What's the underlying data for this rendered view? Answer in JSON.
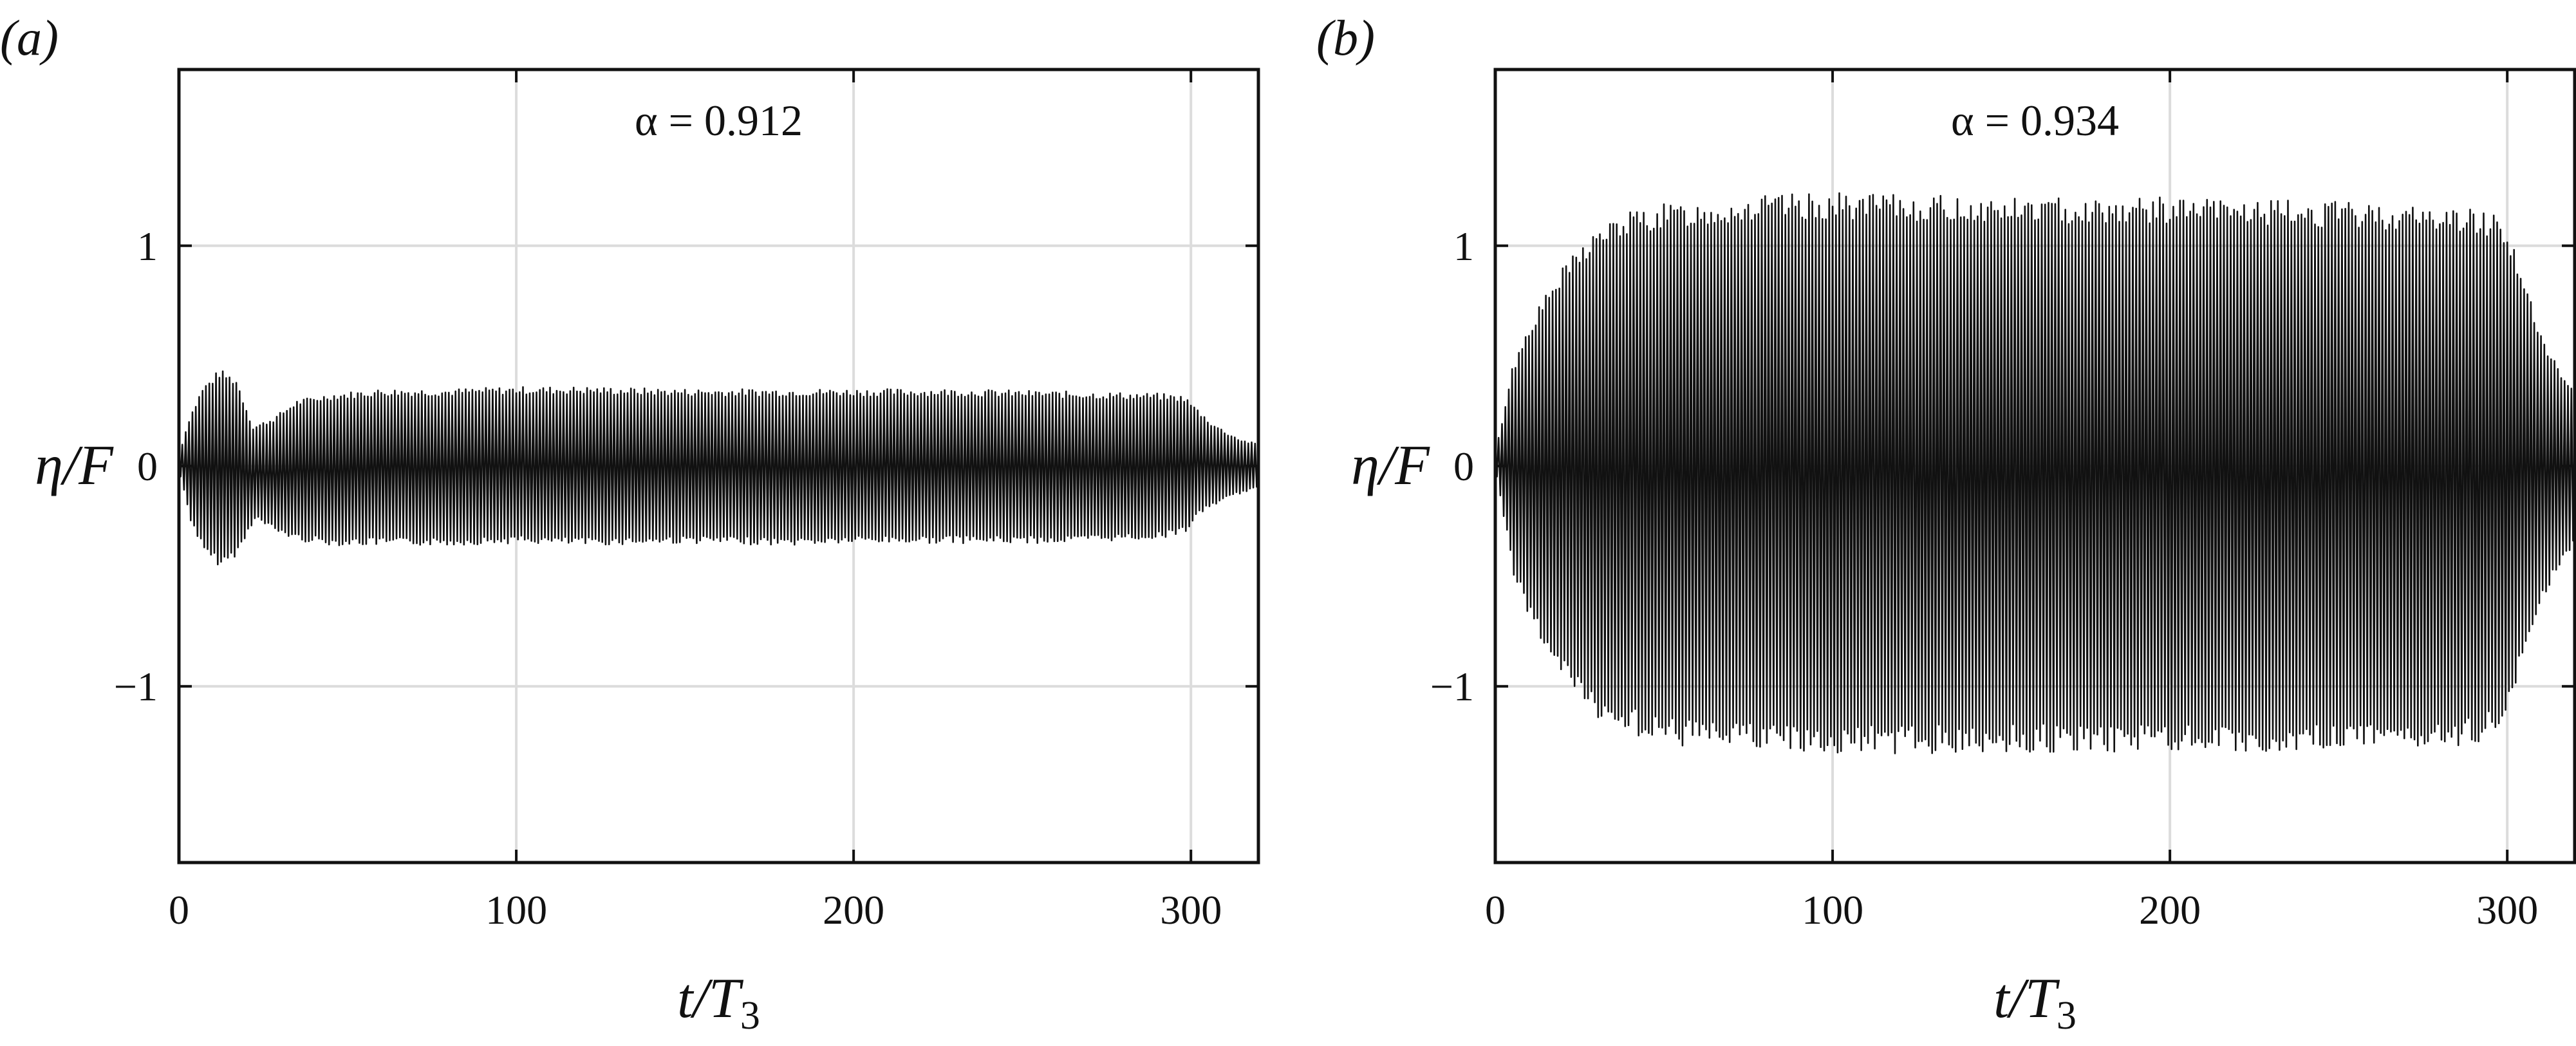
{
  "chart_data": [
    {
      "type": "line",
      "panel_label": "(a)",
      "annotation": "α = 0.912",
      "xlabel_main": "t/T",
      "xlabel_sub": "3",
      "ylabel": "η/F",
      "xlim": [
        0,
        320
      ],
      "ylim": [
        -1.8,
        1.8
      ],
      "xticks": [
        0,
        100,
        200,
        300
      ],
      "yticks": [
        -1,
        0,
        1
      ],
      "ytick_labels": [
        "−1",
        "0",
        "1"
      ],
      "grid": true,
      "series_color": "#111111",
      "envelope": {
        "t": [
          0,
          3,
          7,
          12,
          17,
          22,
          28,
          35,
          45,
          60,
          80,
          100,
          120,
          150,
          180,
          200,
          230,
          260,
          290,
          298,
          302,
          306,
          310,
          315,
          320
        ],
        "upper": [
          0.05,
          0.22,
          0.36,
          0.44,
          0.4,
          0.18,
          0.22,
          0.3,
          0.33,
          0.35,
          0.35,
          0.36,
          0.36,
          0.35,
          0.35,
          0.35,
          0.35,
          0.34,
          0.33,
          0.32,
          0.26,
          0.2,
          0.16,
          0.12,
          0.1
        ],
        "lower": [
          -0.05,
          -0.25,
          -0.4,
          -0.46,
          -0.4,
          -0.24,
          -0.3,
          -0.34,
          -0.36,
          -0.36,
          -0.36,
          -0.35,
          -0.36,
          -0.35,
          -0.36,
          -0.35,
          -0.35,
          -0.35,
          -0.33,
          -0.3,
          -0.22,
          -0.18,
          -0.15,
          -0.12,
          -0.1
        ]
      }
    },
    {
      "type": "line",
      "panel_label": "(b)",
      "annotation": "α = 0.934",
      "xlabel_main": "t/T",
      "xlabel_sub": "3",
      "ylabel": "η/F",
      "xlim": [
        0,
        320
      ],
      "ylim": [
        -1.8,
        1.8
      ],
      "xticks": [
        0,
        100,
        200,
        300
      ],
      "yticks": [
        -1,
        0,
        1
      ],
      "ytick_labels": [
        "−1",
        "0",
        "1"
      ],
      "grid": true,
      "series_color": "#111111",
      "envelope": {
        "t": [
          0,
          5,
          10,
          15,
          20,
          25,
          30,
          40,
          50,
          60,
          80,
          100,
          150,
          200,
          250,
          290,
          297,
          300,
          303,
          306,
          310,
          315,
          320
        ],
        "upper": [
          0.05,
          0.45,
          0.65,
          0.78,
          0.9,
          1.0,
          1.08,
          1.16,
          1.19,
          1.2,
          1.23,
          1.24,
          1.22,
          1.22,
          1.2,
          1.17,
          1.15,
          1.1,
          0.95,
          0.8,
          0.6,
          0.45,
          0.35
        ],
        "lower": [
          -0.05,
          -0.5,
          -0.7,
          -0.85,
          -0.98,
          -1.08,
          -1.15,
          -1.22,
          -1.27,
          -1.28,
          -1.3,
          -1.31,
          -1.3,
          -1.3,
          -1.29,
          -1.27,
          -1.2,
          -1.1,
          -0.95,
          -0.8,
          -0.6,
          -0.45,
          -0.35
        ]
      }
    }
  ]
}
